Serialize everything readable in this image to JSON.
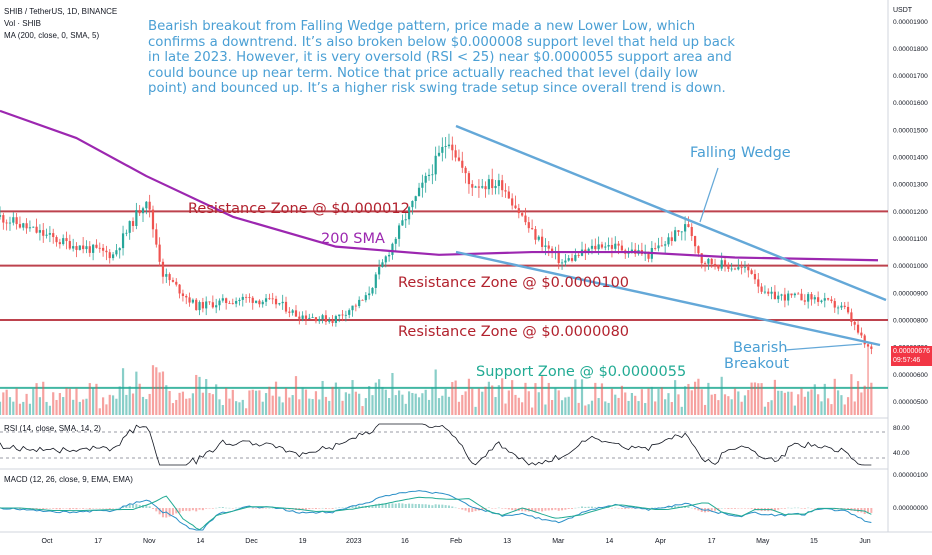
{
  "header": {
    "symbol_line": "SHIB / TetherUS, 1D, BINANCE",
    "vol_line": "Vol · SHIB",
    "ma_line": "MA (200, close, 0, SMA, 5)",
    "rsi_line": "RSI (14, close, SMA, 14, 2)",
    "macd_line": "MACD (12, 26, close, 9, EMA, EMA)",
    "quote_unit": "USDT"
  },
  "annotation": {
    "text": "Bearish breakout from Falling Wedge pattern, price made a new Lower Low, which confirms a downtrend. It’s also broken below $0.000008 support level that held up back in late 2023. However, it is very oversold (RSI < 25) near $0.0000055 support area and could bounce up near term. Notice that price actually reached that level (daily low point) and bounced up. It’s a higher risk swing trade setup since overall trend is down."
  },
  "labels": {
    "resistance_12": "Resistance Zone @ $0.000012",
    "resistance_10": "Resistance Zone @ $0.0000100",
    "resistance_8": "Resistance Zone @ $0.0000080",
    "support_55": "Support Zone @ $0.0000055",
    "sma": "200 SMA",
    "wedge": "Falling Wedge",
    "breakout_line1": "Bearish",
    "breakout_line2": "Breakout"
  },
  "price_tag": {
    "price": "0.00000676",
    "countdown": "09:57:46"
  },
  "colors": {
    "up": "#26a69a",
    "down": "#ef5350",
    "resistance": "#b2222e",
    "support": "#22ab94",
    "annotation": "#4a9fd4",
    "sma": "#9c27b0",
    "wedge": "#64a8d8",
    "macd_line": "#2a8fc7",
    "signal_line": "#22ab94"
  },
  "chart_data": {
    "type": "candlestick",
    "y_axis": {
      "ticks": [
        "0.00001900",
        "0.00001800",
        "0.00001700",
        "0.00001600",
        "0.00001500",
        "0.00001400",
        "0.00001300",
        "0.00001200",
        "0.00001100",
        "0.00001000",
        "0.00000900",
        "0.00000800",
        "0.00000700",
        "0.00000600",
        "0.00000500"
      ],
      "range": [
        4.5e-06,
        1.96e-05
      ]
    },
    "x_axis": {
      "ticks": [
        "Oct",
        "17",
        "Nov",
        "14",
        "Dec",
        "19",
        "2023",
        "16",
        "Feb",
        "13",
        "Mar",
        "14",
        "Apr",
        "17",
        "May",
        "15",
        "Jun"
      ]
    },
    "rsi_axis": {
      "ticks": [
        "80.00",
        "40.00"
      ]
    },
    "macd_axis": {
      "ticks": [
        "0.00000100",
        "0.00000000"
      ]
    },
    "zones": [
      {
        "name": "Resistance Zone @ $0.000012",
        "price": 1.2e-05
      },
      {
        "name": "Resistance Zone @ $0.0000100",
        "price": 1e-05
      },
      {
        "name": "Resistance Zone @ $0.0000080",
        "price": 8e-06
      },
      {
        "name": "Support Zone @ $0.0000055",
        "price": 5.5e-06
      }
    ],
    "keypoints": [
      {
        "date": "2022-09-22",
        "price": 1.18e-05
      },
      {
        "date": "2022-10-10",
        "price": 1.09e-05
      },
      {
        "date": "2022-10-26",
        "price": 1.04e-05
      },
      {
        "date": "2022-11-05",
        "price": 1.25e-05
      },
      {
        "date": "2022-11-10",
        "price": 9.7e-06
      },
      {
        "date": "2022-11-20",
        "price": 8.5e-06
      },
      {
        "date": "2022-12-05",
        "price": 8.8e-06
      },
      {
        "date": "2022-12-15",
        "price": 8.6e-06
      },
      {
        "date": "2022-12-20",
        "price": 8.2e-06
      },
      {
        "date": "2022-12-31",
        "price": 8e-06
      },
      {
        "date": "2023-01-10",
        "price": 8.8e-06
      },
      {
        "date": "2023-01-22",
        "price": 1.18e-05
      },
      {
        "date": "2023-02-04",
        "price": 1.47e-05
      },
      {
        "date": "2023-02-10",
        "price": 1.3e-05
      },
      {
        "date": "2023-02-20",
        "price": 1.3e-05
      },
      {
        "date": "2023-03-01",
        "price": 1.12e-05
      },
      {
        "date": "2023-03-10",
        "price": 1.01e-05
      },
      {
        "date": "2023-03-22",
        "price": 1.08e-05
      },
      {
        "date": "2023-04-05",
        "price": 1.04e-05
      },
      {
        "date": "2023-04-17",
        "price": 1.15e-05
      },
      {
        "date": "2023-04-21",
        "price": 1.02e-05
      },
      {
        "date": "2023-05-06",
        "price": 9.8e-06
      },
      {
        "date": "2023-05-10",
        "price": 8.9e-06
      },
      {
        "date": "2023-05-25",
        "price": 8.8e-06
      },
      {
        "date": "2023-06-03",
        "price": 8.4e-06
      },
      {
        "date": "2023-06-09",
        "price": 7.1e-06
      },
      {
        "date": "2023-06-12",
        "price": 6.76e-06
      }
    ],
    "sma200": [
      {
        "date": "2022-09-22",
        "price": 1.57e-05
      },
      {
        "date": "2022-10-15",
        "price": 1.47e-05
      },
      {
        "date": "2022-11-05",
        "price": 1.33e-05
      },
      {
        "date": "2022-12-01",
        "price": 1.18e-05
      },
      {
        "date": "2023-01-01",
        "price": 1.07e-05
      },
      {
        "date": "2023-02-01",
        "price": 1.04e-05
      },
      {
        "date": "2023-03-01",
        "price": 1.05e-05
      },
      {
        "date": "2023-04-01",
        "price": 1.05e-05
      },
      {
        "date": "2023-05-01",
        "price": 1.03e-05
      },
      {
        "date": "2023-06-13",
        "price": 1.02e-05
      }
    ]
  }
}
